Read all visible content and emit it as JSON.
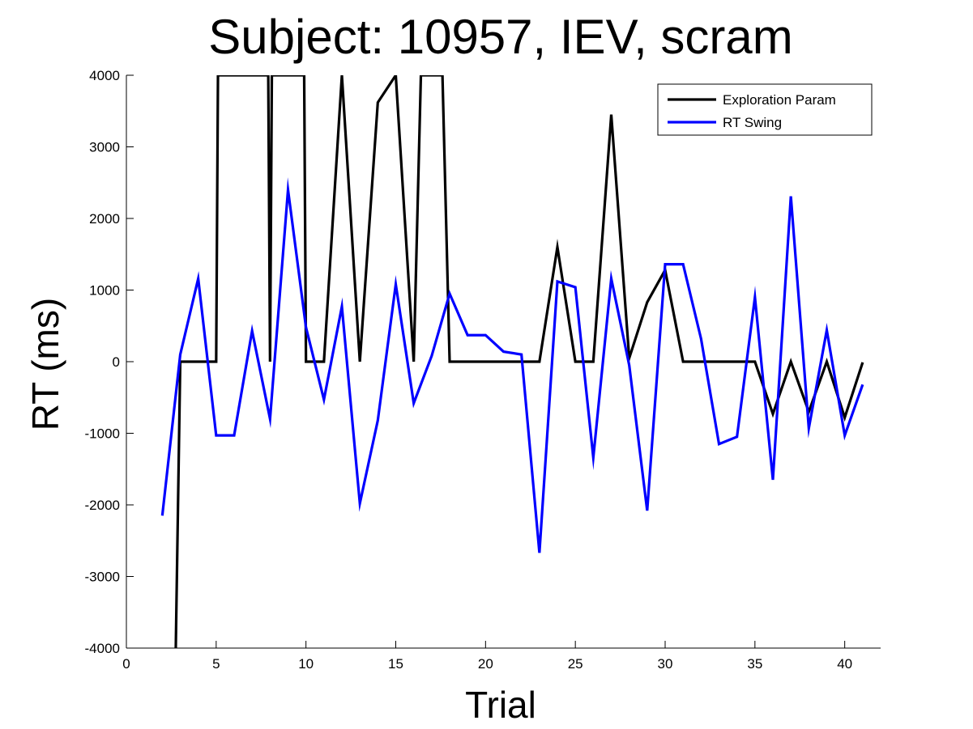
{
  "chart_data": {
    "type": "line",
    "title": "Subject: 10957, IEV, scram",
    "xlabel": "Trial",
    "ylabel": "RT (ms)",
    "xlim": [
      0,
      42
    ],
    "ylim": [
      -4000,
      4000
    ],
    "xticks": [
      0,
      5,
      10,
      15,
      20,
      25,
      30,
      35,
      40
    ],
    "yticks": [
      -4000,
      -3000,
      -2000,
      -1000,
      0,
      1000,
      2000,
      3000,
      4000
    ],
    "legend_position": "top-right",
    "grid": false,
    "series": [
      {
        "name": "Exploration Param",
        "color": "#000000",
        "points": [
          [
            2.75,
            -4000
          ],
          [
            3,
            0
          ],
          [
            4,
            0
          ],
          [
            5,
            0
          ],
          [
            5.1,
            4000
          ],
          [
            7.9,
            4000
          ],
          [
            8,
            0
          ],
          [
            8.1,
            4000
          ],
          [
            9.9,
            4000
          ],
          [
            10,
            0
          ],
          [
            11,
            0
          ],
          [
            12,
            4000
          ],
          [
            13,
            0
          ],
          [
            14,
            3620
          ],
          [
            15,
            4000
          ],
          [
            16,
            0
          ],
          [
            16.4,
            4000
          ],
          [
            17.6,
            4000
          ],
          [
            18,
            0
          ],
          [
            19,
            0
          ],
          [
            20,
            0
          ],
          [
            21,
            0
          ],
          [
            22,
            0
          ],
          [
            23,
            0
          ],
          [
            24,
            1600
          ],
          [
            25,
            0
          ],
          [
            26,
            0
          ],
          [
            27,
            3450
          ],
          [
            28,
            50
          ],
          [
            29,
            830
          ],
          [
            30,
            1280
          ],
          [
            31,
            0
          ],
          [
            32,
            0
          ],
          [
            33,
            0
          ],
          [
            34,
            0
          ],
          [
            35,
            0
          ],
          [
            36,
            -730
          ],
          [
            37,
            0
          ],
          [
            38,
            -700
          ],
          [
            39,
            0
          ],
          [
            40,
            -780
          ],
          [
            41,
            -10
          ]
        ]
      },
      {
        "name": "RT Swing",
        "color": "#0000ff",
        "points": [
          [
            2,
            -2150
          ],
          [
            3,
            100
          ],
          [
            4,
            1160
          ],
          [
            5,
            -1030
          ],
          [
            6,
            -1030
          ],
          [
            7,
            430
          ],
          [
            8,
            -800
          ],
          [
            9,
            2400
          ],
          [
            10,
            480
          ],
          [
            11,
            -530
          ],
          [
            12,
            770
          ],
          [
            13,
            -1980
          ],
          [
            14,
            -820
          ],
          [
            15,
            1080
          ],
          [
            16,
            -580
          ],
          [
            17,
            80
          ],
          [
            18,
            950
          ],
          [
            19,
            370
          ],
          [
            20,
            370
          ],
          [
            21,
            140
          ],
          [
            22,
            100
          ],
          [
            23,
            -2670
          ],
          [
            24,
            1120
          ],
          [
            25,
            1040
          ],
          [
            26,
            -1340
          ],
          [
            27,
            1160
          ],
          [
            28,
            -50
          ],
          [
            29,
            -2080
          ],
          [
            30,
            1360
          ],
          [
            31,
            1360
          ],
          [
            32,
            320
          ],
          [
            33,
            -1150
          ],
          [
            34,
            -1050
          ],
          [
            35,
            900
          ],
          [
            36,
            -1650
          ],
          [
            37,
            2310
          ],
          [
            38,
            -930
          ],
          [
            39,
            440
          ],
          [
            40,
            -1030
          ],
          [
            41,
            -320
          ]
        ]
      }
    ]
  }
}
